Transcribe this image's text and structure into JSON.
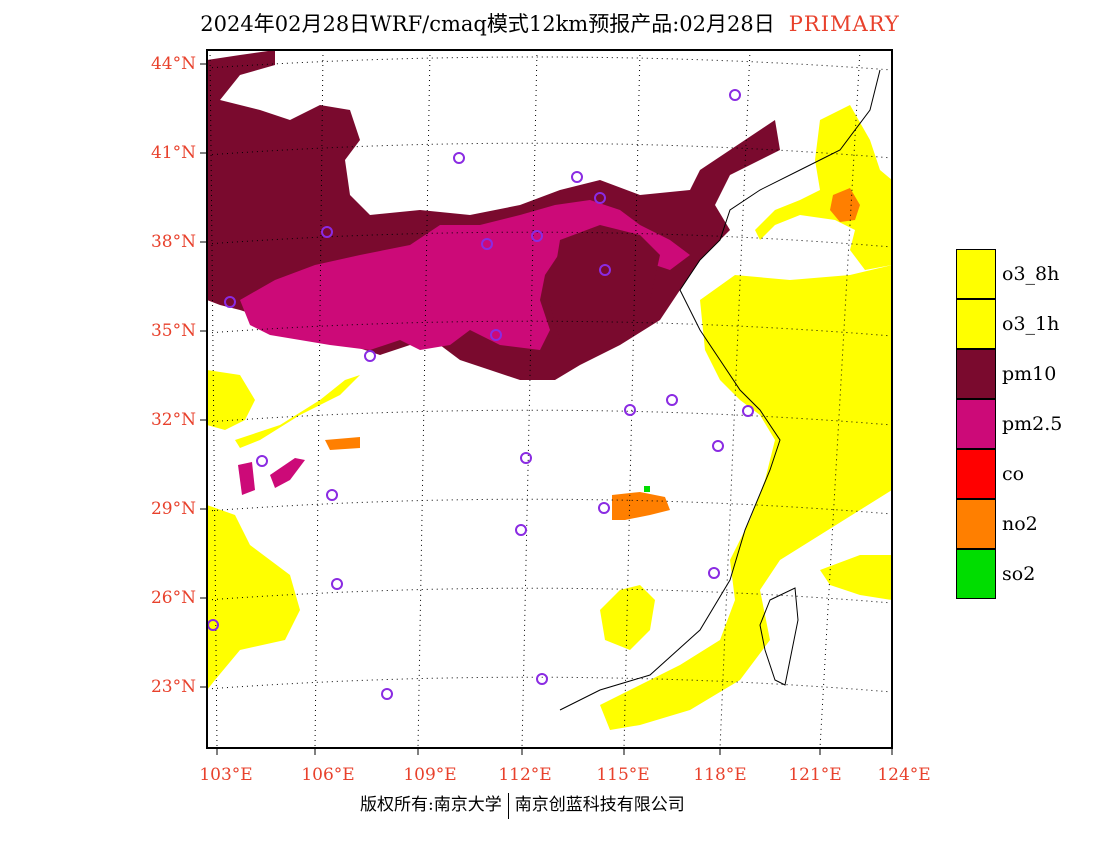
{
  "title": {
    "text": "2024年02月28日WRF/cmaq模式12km预报产品:02月28日",
    "tag": "PRIMARY"
  },
  "lat_labels": [
    "44°N",
    "41°N",
    "38°N",
    "35°N",
    "32°N",
    "29°N",
    "26°N",
    "23°N"
  ],
  "lon_labels": [
    "103°E",
    "106°E",
    "109°E",
    "112°E",
    "115°E",
    "118°E",
    "121°E",
    "124°E"
  ],
  "legend": [
    {
      "label": "o3_8h",
      "color": "#ffff00"
    },
    {
      "label": "o3_1h",
      "color": "#ffff00"
    },
    {
      "label": "pm10",
      "color": "#7a0a2e"
    },
    {
      "label": "pm2.5",
      "color": "#cc0a78"
    },
    {
      "label": "co",
      "color": "#ff0000"
    },
    {
      "label": "no2",
      "color": "#ff7f00"
    },
    {
      "label": "so2",
      "color": "#00dd00"
    }
  ],
  "footer": {
    "left": "版权所有:南京大学",
    "right": "南京创蓝科技有限公司"
  },
  "colors": {
    "accent": "#e8412c",
    "station_marker": "#8a2be2",
    "frame": "#000000"
  }
}
